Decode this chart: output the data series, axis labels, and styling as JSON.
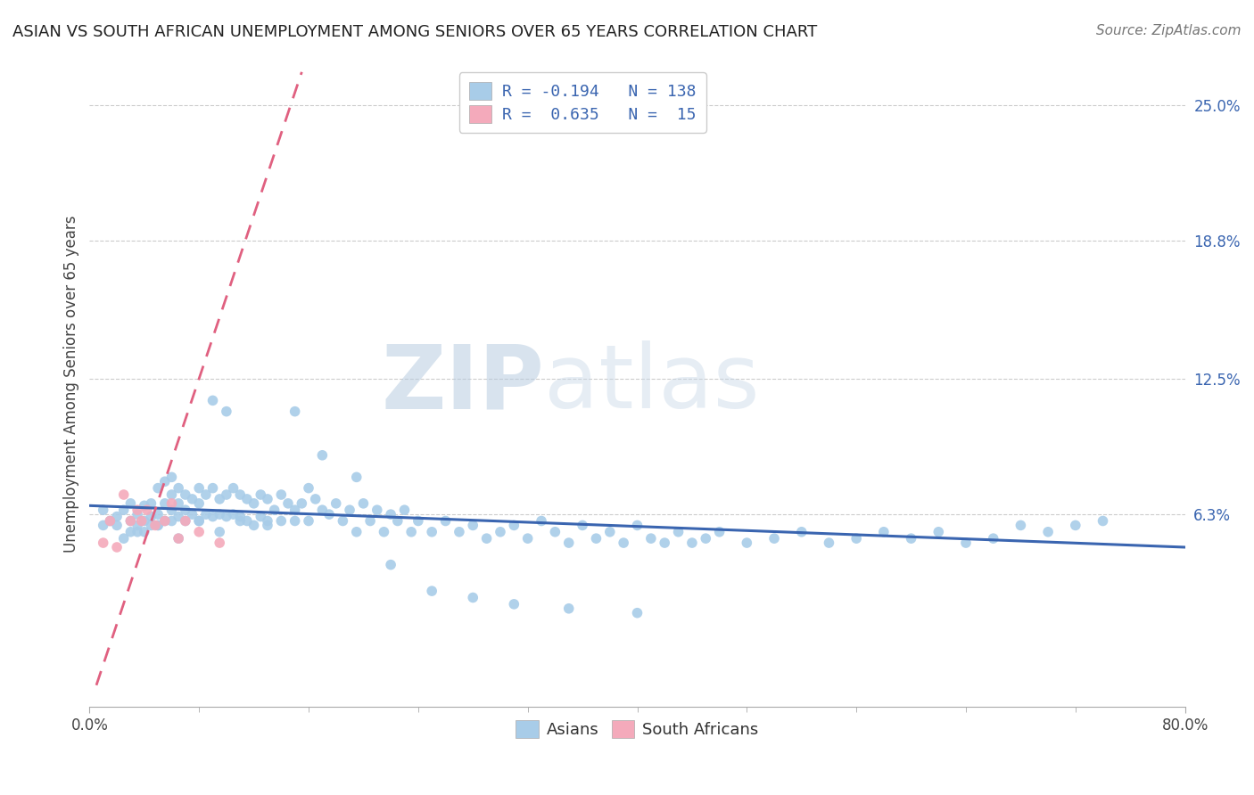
{
  "title": "ASIAN VS SOUTH AFRICAN UNEMPLOYMENT AMONG SENIORS OVER 65 YEARS CORRELATION CHART",
  "source": "Source: ZipAtlas.com",
  "ylabel": "Unemployment Among Seniors over 65 years",
  "xlim": [
    0.0,
    0.8
  ],
  "ylim": [
    -0.025,
    0.27
  ],
  "x_tick_labels": [
    "0.0%",
    "80.0%"
  ],
  "y_ticks": [
    0.063,
    0.125,
    0.188,
    0.25
  ],
  "y_tick_labels": [
    "6.3%",
    "12.5%",
    "18.8%",
    "25.0%"
  ],
  "asian_R": -0.194,
  "asian_N": 138,
  "sa_R": 0.635,
  "sa_N": 15,
  "asian_color": "#A8CCE8",
  "asian_color_dark": "#3A65B0",
  "sa_color": "#F4AABB",
  "sa_color_dark": "#E06080",
  "watermark_zip": "ZIP",
  "watermark_atlas": "atlas",
  "asian_x": [
    0.01,
    0.015,
    0.02,
    0.02,
    0.025,
    0.03,
    0.03,
    0.03,
    0.035,
    0.035,
    0.04,
    0.04,
    0.04,
    0.045,
    0.045,
    0.045,
    0.05,
    0.05,
    0.05,
    0.055,
    0.055,
    0.055,
    0.06,
    0.06,
    0.06,
    0.06,
    0.065,
    0.065,
    0.065,
    0.07,
    0.07,
    0.07,
    0.075,
    0.075,
    0.08,
    0.08,
    0.08,
    0.085,
    0.085,
    0.09,
    0.09,
    0.09,
    0.095,
    0.095,
    0.1,
    0.1,
    0.1,
    0.105,
    0.105,
    0.11,
    0.11,
    0.115,
    0.115,
    0.12,
    0.12,
    0.125,
    0.125,
    0.13,
    0.13,
    0.135,
    0.14,
    0.14,
    0.145,
    0.15,
    0.15,
    0.155,
    0.16,
    0.16,
    0.165,
    0.17,
    0.175,
    0.18,
    0.185,
    0.19,
    0.195,
    0.2,
    0.205,
    0.21,
    0.215,
    0.22,
    0.225,
    0.23,
    0.235,
    0.24,
    0.25,
    0.26,
    0.27,
    0.28,
    0.29,
    0.3,
    0.31,
    0.32,
    0.33,
    0.34,
    0.35,
    0.36,
    0.37,
    0.38,
    0.39,
    0.4,
    0.41,
    0.42,
    0.43,
    0.44,
    0.45,
    0.46,
    0.48,
    0.5,
    0.52,
    0.54,
    0.56,
    0.58,
    0.6,
    0.62,
    0.64,
    0.66,
    0.68,
    0.7,
    0.72,
    0.74,
    0.01,
    0.025,
    0.035,
    0.05,
    0.065,
    0.08,
    0.095,
    0.11,
    0.13,
    0.15,
    0.17,
    0.195,
    0.22,
    0.25,
    0.28,
    0.31,
    0.35,
    0.4
  ],
  "asian_y": [
    0.065,
    0.06,
    0.062,
    0.058,
    0.065,
    0.06,
    0.055,
    0.068,
    0.063,
    0.058,
    0.067,
    0.06,
    0.055,
    0.068,
    0.062,
    0.058,
    0.075,
    0.063,
    0.058,
    0.078,
    0.068,
    0.06,
    0.08,
    0.072,
    0.065,
    0.06,
    0.075,
    0.068,
    0.062,
    0.072,
    0.065,
    0.06,
    0.07,
    0.063,
    0.075,
    0.068,
    0.06,
    0.072,
    0.063,
    0.115,
    0.075,
    0.062,
    0.07,
    0.063,
    0.11,
    0.072,
    0.062,
    0.075,
    0.063,
    0.072,
    0.062,
    0.07,
    0.06,
    0.068,
    0.058,
    0.072,
    0.062,
    0.07,
    0.06,
    0.065,
    0.072,
    0.06,
    0.068,
    0.11,
    0.06,
    0.068,
    0.075,
    0.06,
    0.07,
    0.065,
    0.063,
    0.068,
    0.06,
    0.065,
    0.055,
    0.068,
    0.06,
    0.065,
    0.055,
    0.063,
    0.06,
    0.065,
    0.055,
    0.06,
    0.055,
    0.06,
    0.055,
    0.058,
    0.052,
    0.055,
    0.058,
    0.052,
    0.06,
    0.055,
    0.05,
    0.058,
    0.052,
    0.055,
    0.05,
    0.058,
    0.052,
    0.05,
    0.055,
    0.05,
    0.052,
    0.055,
    0.05,
    0.052,
    0.055,
    0.05,
    0.052,
    0.055,
    0.052,
    0.055,
    0.05,
    0.052,
    0.058,
    0.055,
    0.058,
    0.06,
    0.058,
    0.052,
    0.055,
    0.058,
    0.052,
    0.06,
    0.055,
    0.06,
    0.058,
    0.065,
    0.09,
    0.08,
    0.04,
    0.028,
    0.025,
    0.022,
    0.02,
    0.018
  ],
  "sa_x": [
    0.01,
    0.015,
    0.02,
    0.025,
    0.03,
    0.035,
    0.038,
    0.042,
    0.048,
    0.055,
    0.06,
    0.065,
    0.07,
    0.08,
    0.095
  ],
  "sa_y": [
    0.05,
    0.06,
    0.048,
    0.072,
    0.06,
    0.065,
    0.06,
    0.065,
    0.058,
    0.06,
    0.068,
    0.052,
    0.06,
    0.055,
    0.05
  ],
  "sa_line_x": [
    0.005,
    0.155
  ],
  "sa_line_y": [
    -0.015,
    0.265
  ],
  "asian_line_x": [
    0.0,
    0.8
  ],
  "asian_line_y": [
    0.067,
    0.048
  ]
}
